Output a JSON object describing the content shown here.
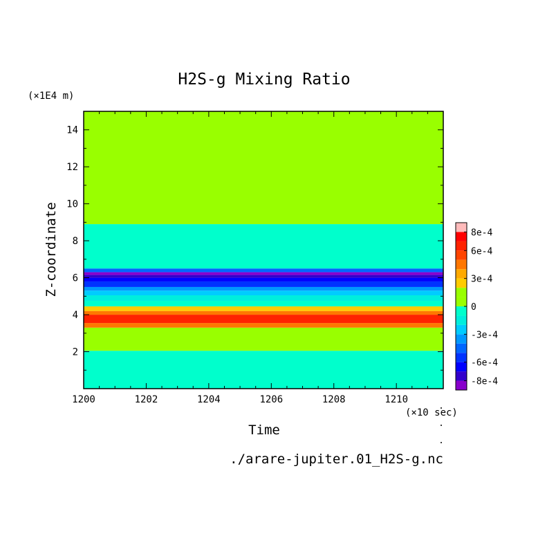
{
  "chart_data": {
    "type": "heatmap",
    "title": "H2S-g Mixing Ratio",
    "xlabel": "Time",
    "ylabel": "Z-coordinate",
    "x_unit": "(×10 sec)",
    "y_unit": "(×1E4 m)",
    "source_file": "./arare-jupiter.01_H2S-g.nc",
    "xlim": [
      1200,
      1211.5
    ],
    "ylim": [
      0,
      15
    ],
    "x_ticks": [
      "1200",
      "1202",
      "1204",
      "1206",
      "1208",
      "1210"
    ],
    "x_tick_values": [
      1200,
      1202,
      1204,
      1206,
      1208,
      1210
    ],
    "y_ticks": [
      "2",
      "4",
      "6",
      "8",
      "10",
      "12",
      "14"
    ],
    "y_tick_values": [
      2,
      4,
      6,
      8,
      10,
      12,
      14
    ],
    "colorbar": {
      "tick_labels": [
        "8e-4",
        "6e-4",
        "3e-4",
        "0",
        "-3e-4",
        "-6e-4",
        "-8e-4"
      ],
      "tick_values": [
        0.0008,
        0.0006,
        0.0003,
        0,
        -0.0003,
        -0.0006,
        -0.0008
      ],
      "levels": [
        -0.0009,
        -0.0008,
        -0.0007,
        -0.0006,
        -0.0005,
        -0.0004,
        -0.0003,
        -0.0002,
        -0.0001,
        0,
        0.0001,
        0.0002,
        0.0003,
        0.0004,
        0.0005,
        0.0006,
        0.0007,
        0.0008,
        0.0009
      ],
      "colors": [
        "#8800cc",
        "#3300cc",
        "#0000ff",
        "#0033ff",
        "#0066ff",
        "#0099ff",
        "#00ccff",
        "#00eedd",
        "#00ffcc",
        "#99ff00",
        "#99ff00",
        "#ffcc00",
        "#ffaa00",
        "#ff7700",
        "#ff4400",
        "#ff2200",
        "#ff0000",
        "#ffbbbb"
      ]
    },
    "bands": [
      {
        "z": [
          0.0,
          2.05
        ],
        "value": -5e-05,
        "color": "#00ffcc"
      },
      {
        "z": [
          2.05,
          3.3
        ],
        "value": 5e-05,
        "color": "#99ff00"
      },
      {
        "z": [
          3.3,
          3.55
        ],
        "value": 0.0004,
        "color": "#ff7700"
      },
      {
        "z": [
          3.55,
          4.0
        ],
        "value": 0.00065,
        "color": "#ff2200"
      },
      {
        "z": [
          4.0,
          4.2
        ],
        "value": 0.00045,
        "color": "#ff7700"
      },
      {
        "z": [
          4.2,
          4.45
        ],
        "value": 0.00025,
        "color": "#ffcc00"
      },
      {
        "z": [
          4.45,
          4.75
        ],
        "value": -5e-05,
        "color": "#00ffcc"
      },
      {
        "z": [
          4.75,
          5.05
        ],
        "value": -0.00015,
        "color": "#00eedd"
      },
      {
        "z": [
          5.05,
          5.3
        ],
        "value": -0.00025,
        "color": "#00ccff"
      },
      {
        "z": [
          5.3,
          5.5
        ],
        "value": -0.00035,
        "color": "#0099ff"
      },
      {
        "z": [
          5.5,
          5.8
        ],
        "value": -0.00055,
        "color": "#0033ff"
      },
      {
        "z": [
          5.8,
          6.0
        ],
        "value": -0.00065,
        "color": "#0000ff"
      },
      {
        "z": [
          6.0,
          6.15
        ],
        "value": -0.00075,
        "color": "#3300cc"
      },
      {
        "z": [
          6.15,
          6.3
        ],
        "value": -0.00085,
        "color": "#8800cc"
      },
      {
        "z": [
          6.3,
          6.5
        ],
        "value": -0.00045,
        "color": "#0066ff"
      },
      {
        "z": [
          6.5,
          8.9
        ],
        "value": -5e-05,
        "color": "#00ffcc"
      },
      {
        "z": [
          8.9,
          15.0
        ],
        "value": 5e-05,
        "color": "#99ff00"
      }
    ]
  }
}
